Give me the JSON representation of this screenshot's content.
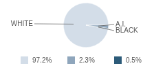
{
  "chart_data": {
    "type": "pie",
    "categories": [
      "WHITE",
      "A.I.",
      "BLACK"
    ],
    "values": [
      97.2,
      2.3,
      0.5
    ],
    "value_labels": [
      "97.2%",
      "2.3%",
      "0.5%"
    ],
    "colors": [
      "#d3dde8",
      "#8fa6bc",
      "#2c5b79"
    ],
    "legend": "bottom"
  }
}
